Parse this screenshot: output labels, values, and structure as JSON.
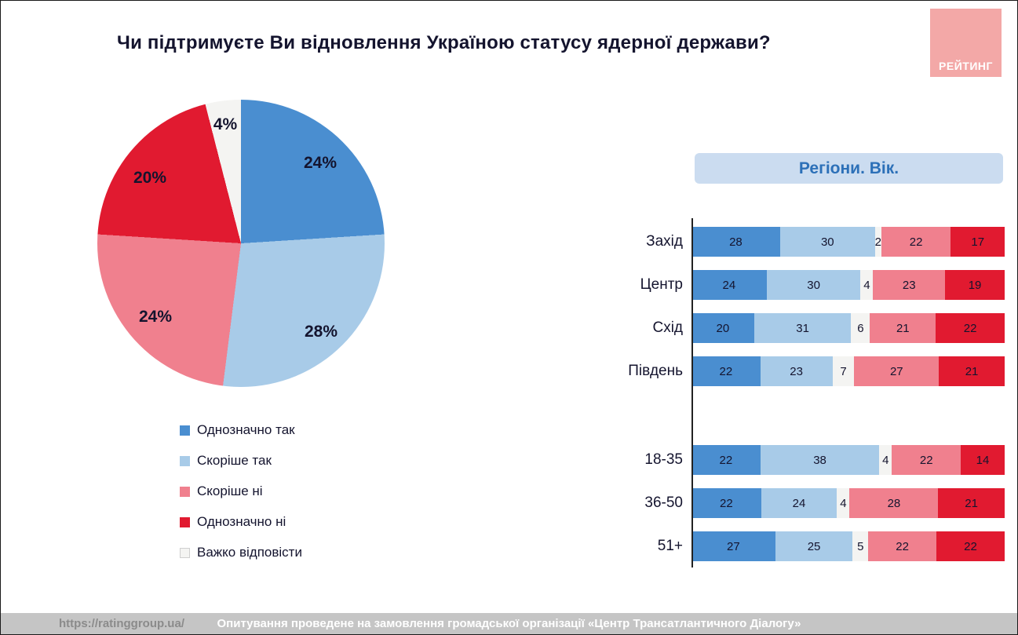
{
  "title": "Чи підтримуєте Ви відновлення Україною статусу ядерної держави?",
  "logo": {
    "text": "РЕЙТИНГ",
    "bg": "#f3a8a7"
  },
  "panel_header": "Регіони. Вік.",
  "footer": {
    "link": "https://ratinggroup.ua/",
    "note": "Опитування проведене на замовлення громадської організації «Центр Трансатлантичного Діалогу»"
  },
  "colors": {
    "definitely_yes": "#4a8ed0",
    "rather_yes": "#a8cbe8",
    "rather_no": "#f0808e",
    "definitely_no": "#e11a30",
    "hard_to_answer": "#f4f4f2",
    "accent_blue": "#2c70b8",
    "header_bg": "#cbdcf0"
  },
  "chart_data": [
    {
      "type": "pie",
      "title": "Чи підтримуєте Ви відновлення Україною статусу ядерної держави?",
      "labels": [
        "Однозначно так",
        "Скоріше так",
        "Скоріше ні",
        "Однозначно ні",
        "Важко відповісти"
      ],
      "values": [
        24,
        28,
        24,
        20,
        4
      ],
      "display_labels": [
        "24%",
        "28%",
        "24%",
        "20%",
        "4%"
      ],
      "colors": [
        "#4a8ed0",
        "#a8cbe8",
        "#f0808e",
        "#e11a30",
        "#f4f4f2"
      ],
      "legend_position": "bottom-left"
    },
    {
      "type": "bar",
      "stacked": true,
      "orientation": "horizontal",
      "title": "Регіони. Вік.",
      "series_labels": [
        "Однозначно так",
        "Скоріше так",
        "Важко відповісти",
        "Скоріше ні",
        "Однозначно ні"
      ],
      "colors": [
        "#4a8ed0",
        "#a8cbe8",
        "#f4f4f2",
        "#f0808e",
        "#e11a30"
      ],
      "xlim": [
        0,
        100
      ],
      "groups": [
        {
          "name": "regions",
          "rows": [
            {
              "label": "Захід",
              "values": [
                28,
                30,
                2,
                22,
                17
              ]
            },
            {
              "label": "Центр",
              "values": [
                24,
                30,
                4,
                23,
                19
              ]
            },
            {
              "label": "Схід",
              "values": [
                20,
                31,
                6,
                21,
                22
              ]
            },
            {
              "label": "Південь",
              "values": [
                22,
                23,
                7,
                27,
                21
              ]
            }
          ]
        },
        {
          "name": "age",
          "rows": [
            {
              "label": "18-35",
              "values": [
                22,
                38,
                4,
                22,
                14
              ]
            },
            {
              "label": "36-50",
              "values": [
                22,
                24,
                4,
                28,
                21
              ]
            },
            {
              "label": "51+",
              "values": [
                27,
                25,
                5,
                22,
                22
              ]
            }
          ]
        }
      ]
    }
  ]
}
